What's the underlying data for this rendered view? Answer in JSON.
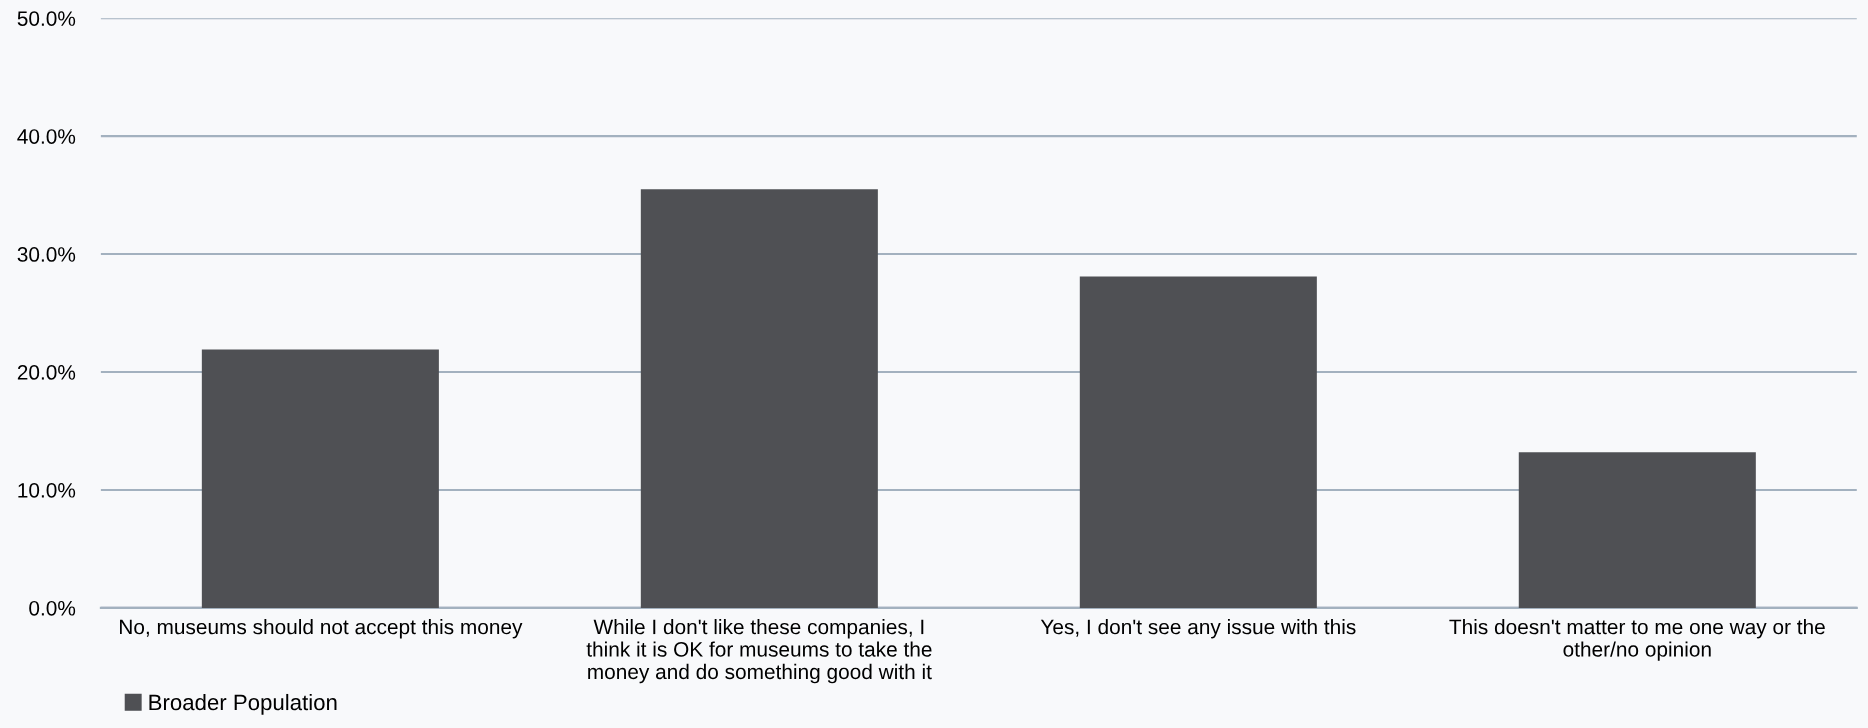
{
  "chart_data": {
    "type": "bar",
    "categories": [
      "No, museums should not accept this money",
      "While I don't like these companies, I think it is OK for museums to take the money and do something good with it",
      "Yes, I don't see any issue with this",
      "This doesn't matter to me one way or the other/no opinion"
    ],
    "series": [
      {
        "name": "Broader Population",
        "color": "#4f5054",
        "values": [
          21.9,
          35.5,
          28.1,
          13.2
        ]
      }
    ],
    "ylim": [
      0,
      50
    ],
    "yticks": [
      {
        "value": 0,
        "label": "0.0%"
      },
      {
        "value": 10,
        "label": "10.0%"
      },
      {
        "value": 20,
        "label": "20.0%"
      },
      {
        "value": 30,
        "label": "30.0%"
      },
      {
        "value": 40,
        "label": "40.0%"
      },
      {
        "value": 50,
        "label": "50.0%"
      }
    ],
    "grid": "y",
    "legend": "bottom left"
  }
}
